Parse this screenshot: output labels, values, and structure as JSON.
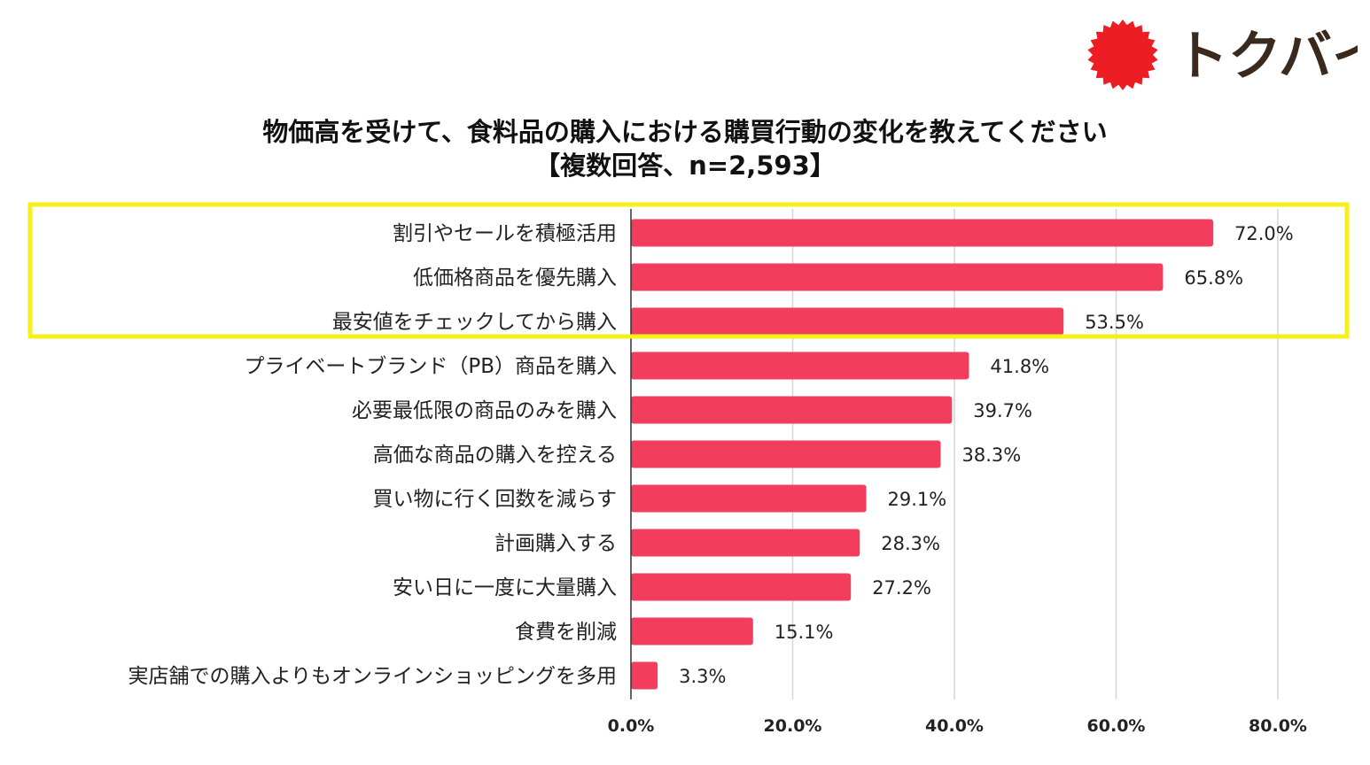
{
  "logo": {
    "text": "トクバイ",
    "brand_color": "#ee1c25",
    "text_color": "#3a2a1e"
  },
  "highlight": {
    "color": "#f7ef1b"
  },
  "chart_data": {
    "type": "bar",
    "orientation": "horizontal",
    "title": "物価高を受けて、食料品の購入における購買行動の変化を教えてください",
    "subtitle": "【複数回答、n=2,593】",
    "bar_color": "#f23d5c",
    "grid": true,
    "xlim": [
      0,
      80
    ],
    "xticks": [
      0,
      20,
      40,
      60,
      80
    ],
    "xtick_labels": [
      "0.0%",
      "20.0%",
      "40.0%",
      "60.0%",
      "80.0%"
    ],
    "categories": [
      "割引やセールを積極活用",
      "低価格商品を優先購入",
      "最安値をチェックしてから購入",
      "プライベートブランド（PB）商品を購入",
      "必要最低限の商品のみを購入",
      "高価な商品の購入を控える",
      "買い物に行く回数を減らす",
      "計画購入する",
      "安い日に一度に大量購入",
      "食費を削減",
      "実店舗での購入よりもオンラインショッピングを多用"
    ],
    "values": [
      72.0,
      65.8,
      53.5,
      41.8,
      39.7,
      38.3,
      29.1,
      28.3,
      27.2,
      15.1,
      3.3
    ],
    "value_labels": [
      "72.0%",
      "65.8%",
      "53.5%",
      "41.8%",
      "39.7%",
      "38.3%",
      "29.1%",
      "28.3%",
      "27.2%",
      "15.1%",
      "3.3%"
    ],
    "highlighted_categories": [
      0,
      1,
      2
    ]
  }
}
